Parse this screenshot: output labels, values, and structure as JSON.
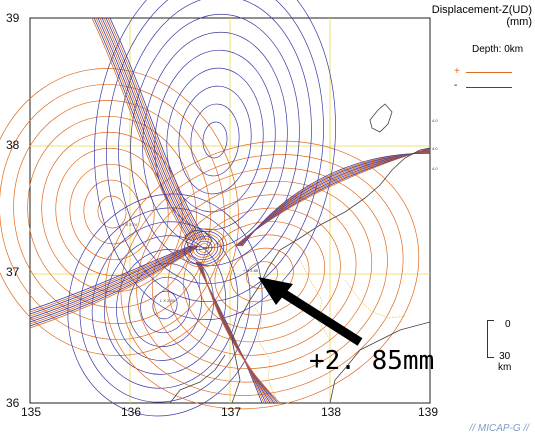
{
  "legend": {
    "title_line1": "Displacement-Z(UD)",
    "title_line2": "(mm)",
    "depth": "Depth: 0km",
    "positive_symbol": "+",
    "negative_symbol": "-",
    "positive_color": "#e06a1e",
    "negative_color": "#3a3aa8"
  },
  "axes": {
    "lon_ticks": [
      "135",
      "136",
      "137",
      "138",
      "139"
    ],
    "lat_ticks": [
      "39",
      "38",
      "37",
      "36"
    ]
  },
  "scale": {
    "top": "0",
    "bottom_value": "30",
    "bottom_unit": "km"
  },
  "callout": {
    "text": "+2. 85mm"
  },
  "footer": {
    "brand": "// MICAP-G //"
  },
  "colors": {
    "grid": "#e8d84a",
    "coast": "#444444",
    "arrow": "#000000"
  }
}
